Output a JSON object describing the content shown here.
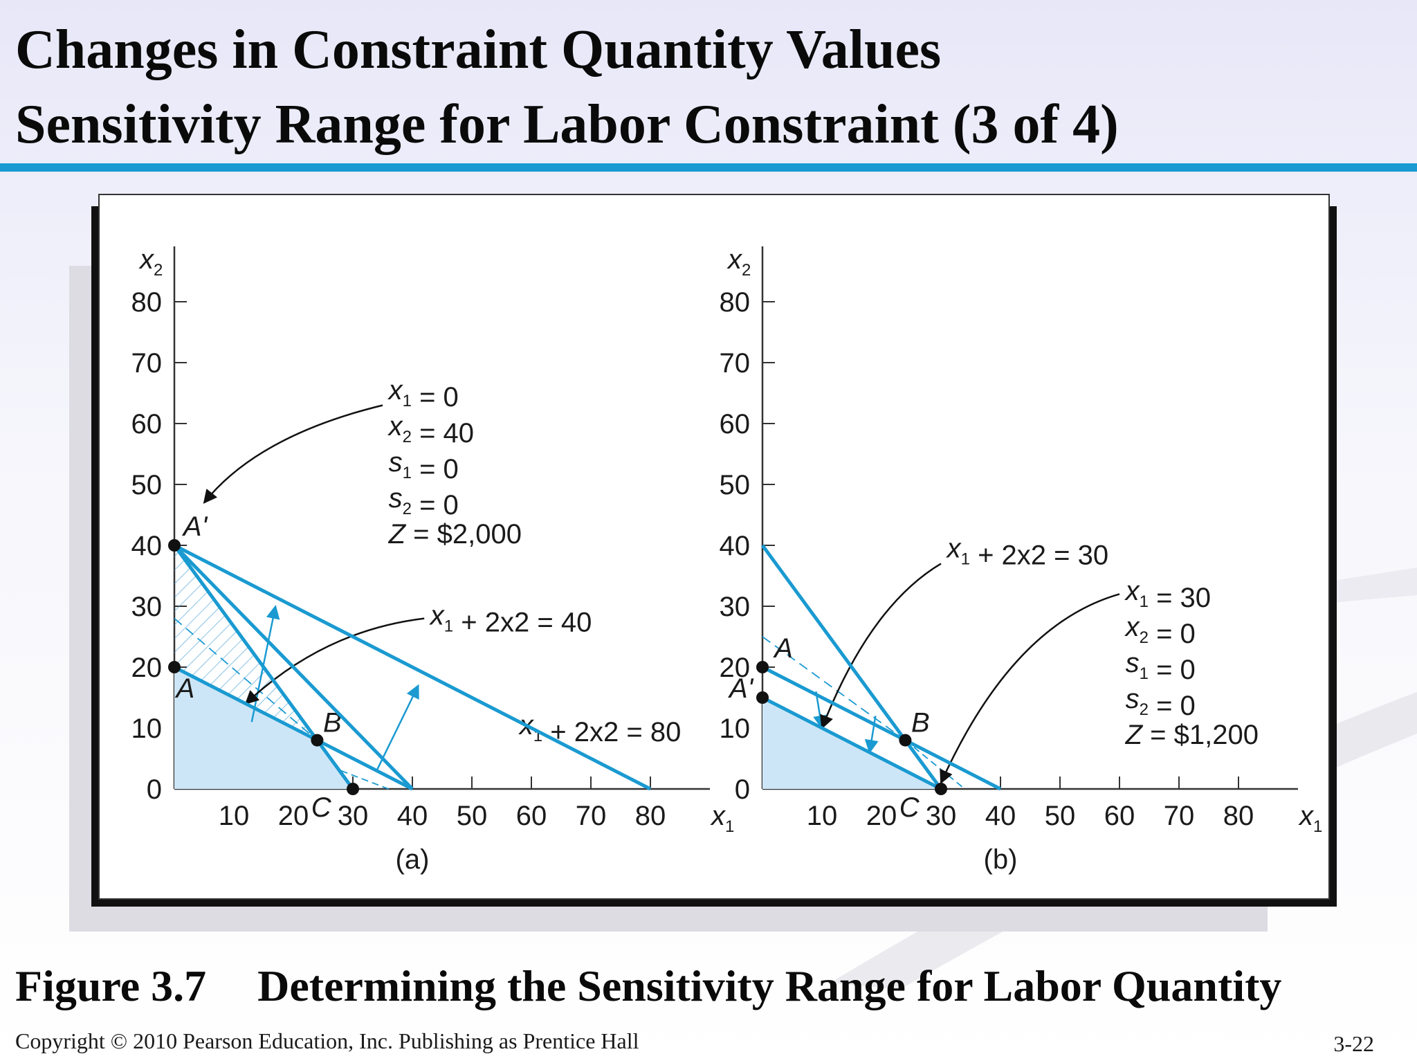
{
  "slide": {
    "title_line1": "Changes in Constraint Quantity Values",
    "title_line2": "Sensitivity Range for Labor Constraint (3 of 4)",
    "caption_label": "Figure 3.7",
    "caption_text": "Determining the Sensitivity Range for Labor Quantity",
    "copyright": "Copyright © 2010 Pearson Education, Inc. Publishing as Prentice Hall",
    "slide_number": "3-22"
  },
  "colors": {
    "accent_line": "#1a9ad1",
    "region_fill": "#cde6f7",
    "text": "#1a1a1a"
  },
  "chart_data": [
    {
      "panel": "(a)",
      "type": "line",
      "xlabel": "x1",
      "ylabel": "x2",
      "xlim": [
        0,
        90
      ],
      "ylim": [
        0,
        80
      ],
      "xticks": [
        10,
        20,
        30,
        40,
        50,
        60,
        70,
        80
      ],
      "yticks": [
        0,
        10,
        20,
        30,
        40,
        50,
        60,
        70,
        80
      ],
      "lines": [
        {
          "x": [
            0,
            80
          ],
          "y": [
            40,
            0
          ],
          "label": "x1 + 2x2 = 80"
        },
        {
          "x": [
            0,
            40
          ],
          "y": [
            20,
            0
          ]
        },
        {
          "x": [
            0,
            30
          ],
          "y": [
            40,
            0
          ]
        },
        {
          "x": [
            0,
            40
          ],
          "y": [
            40,
            0
          ]
        }
      ],
      "points": [
        {
          "name": "A'",
          "x": 0,
          "y": 40
        },
        {
          "name": "A",
          "x": 0,
          "y": 20
        },
        {
          "name": "B",
          "x": 24,
          "y": 8
        },
        {
          "name": "C",
          "x": 30,
          "y": 0
        }
      ],
      "solution_box": [
        "x1 = 0",
        "x2 = 40",
        "s1 = 0",
        "s2 = 0",
        "Z = $2,000"
      ],
      "arrow_labels": [
        "x1 + 2x2 = 40"
      ]
    },
    {
      "panel": "(b)",
      "type": "line",
      "xlabel": "x1",
      "ylabel": "x2",
      "xlim": [
        0,
        90
      ],
      "ylim": [
        0,
        80
      ],
      "xticks": [
        10,
        20,
        30,
        40,
        50,
        60,
        70,
        80
      ],
      "yticks": [
        0,
        10,
        20,
        30,
        40,
        50,
        60,
        70,
        80
      ],
      "lines": [
        {
          "x": [
            0,
            40
          ],
          "y": [
            20,
            0
          ]
        },
        {
          "x": [
            0,
            30
          ],
          "y": [
            15,
            0
          ]
        },
        {
          "x": [
            0,
            30
          ],
          "y": [
            40,
            0
          ]
        }
      ],
      "points": [
        {
          "name": "A",
          "x": 0,
          "y": 20
        },
        {
          "name": "A'",
          "x": 0,
          "y": 15
        },
        {
          "name": "B",
          "x": 24,
          "y": 8
        },
        {
          "name": "C",
          "x": 30,
          "y": 0
        }
      ],
      "solution_box": [
        "x1 = 30",
        "x2 = 0",
        "s1 = 0",
        "s2 = 0",
        "Z = $1,200"
      ],
      "arrow_labels": [
        "x1 + 2x2 = 30"
      ]
    }
  ]
}
